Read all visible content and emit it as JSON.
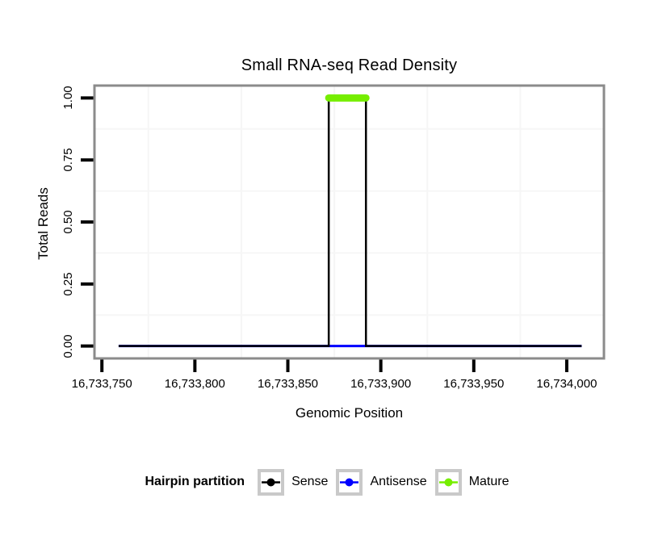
{
  "chart_data": {
    "type": "line",
    "title": "Small RNA-seq Read Density",
    "xlabel": "Genomic Position",
    "ylabel": "Total Reads",
    "x_domain": [
      16733746,
      16734020
    ],
    "y_domain": [
      -0.05,
      1.05
    ],
    "x_ticks": [
      {
        "value": 16733750,
        "label": "16,733,750"
      },
      {
        "value": 16733800,
        "label": "16,733,800"
      },
      {
        "value": 16733850,
        "label": "16,733,850"
      },
      {
        "value": 16733900,
        "label": "16,733,900"
      },
      {
        "value": 16733950,
        "label": "16,733,950"
      },
      {
        "value": 16734000,
        "label": "16,734,000"
      }
    ],
    "y_ticks": [
      {
        "value": 0.0,
        "label": "0.00"
      },
      {
        "value": 0.25,
        "label": "0.25"
      },
      {
        "value": 0.5,
        "label": "0.50"
      },
      {
        "value": 0.75,
        "label": "0.75"
      },
      {
        "value": 1.0,
        "label": "1.00"
      }
    ],
    "grid": {
      "x_minor": [
        16733775,
        16733825,
        16733875,
        16733925,
        16733975
      ],
      "y_minor": [
        0.125,
        0.375,
        0.625,
        0.875
      ],
      "minor_color": "#f6f6f6",
      "major_visible": false
    },
    "series": [
      {
        "name": "Antisense",
        "color": "#0000ff",
        "width": 3,
        "cap": "butt",
        "points": [
          [
            16733759,
            0
          ],
          [
            16734008,
            0
          ]
        ]
      },
      {
        "name": "Sense",
        "color": "#000000",
        "width": 2.5,
        "cap": "butt",
        "points": [
          [
            16733759,
            0
          ],
          [
            16733872,
            0
          ],
          [
            16733872,
            1
          ],
          [
            16733892,
            1
          ],
          [
            16733892,
            0
          ],
          [
            16734008,
            0
          ]
        ]
      },
      {
        "name": "Mature",
        "color": "#76ee00",
        "width": 9,
        "cap": "round",
        "points": [
          [
            16733872,
            1
          ],
          [
            16733892,
            1
          ]
        ]
      }
    ],
    "panel_border_color": "#8b8b8b",
    "tick_color": "#000000",
    "legend": {
      "title": "Hairpin partition",
      "position": "bottom",
      "entries": [
        {
          "label": "Sense",
          "color": "#000000"
        },
        {
          "label": "Antisense",
          "color": "#0000ff"
        },
        {
          "label": "Mature",
          "color": "#76ee00"
        }
      ]
    }
  }
}
